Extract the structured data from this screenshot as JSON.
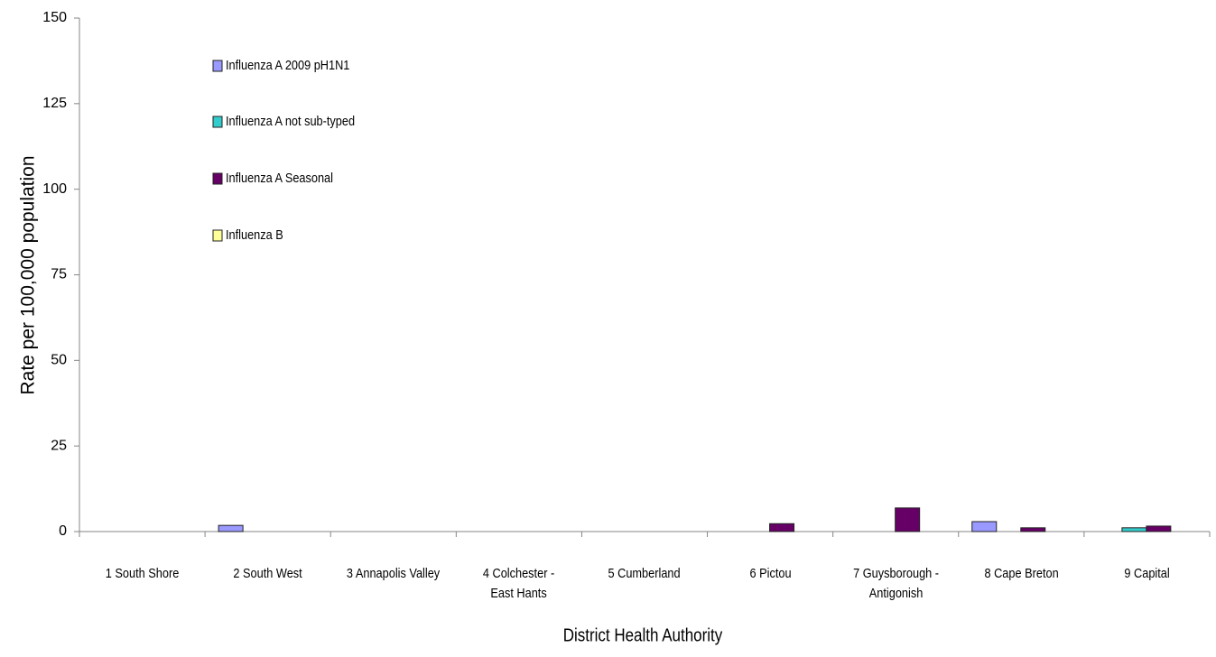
{
  "chart_data": {
    "type": "bar",
    "x_label": "District Health Authority",
    "y_label": "Rate per 100,000 population",
    "categories": [
      "1 South Shore",
      "2 South West",
      "3 Annapolis Valley",
      "4 Colchester - East Hants",
      "5 Cumberland",
      "6 Pictou",
      "7 Guysborough - Antigonish",
      "8 Cape Breton",
      "9 Capital"
    ],
    "series": [
      {
        "name": "Influenza A 2009 pH1N1",
        "color": "#9999ff",
        "values": [
          0,
          1.8,
          0,
          0,
          0,
          0,
          0,
          2.9,
          0
        ]
      },
      {
        "name": "Influenza A not sub-typed",
        "color": "#33cccc",
        "values": [
          0,
          0,
          0,
          0,
          0,
          0,
          0,
          0,
          1.1
        ]
      },
      {
        "name": "Influenza A Seasonal",
        "color": "#660066",
        "values": [
          0,
          0,
          0,
          0,
          0,
          2.3,
          6.9,
          1.1,
          1.6
        ]
      },
      {
        "name": "Influenza B",
        "color": "#ffff99",
        "values": [
          0,
          0,
          0,
          0,
          0,
          0,
          0,
          0,
          0
        ]
      }
    ],
    "ylim": [
      0,
      150
    ],
    "yticks": [
      0,
      25,
      50,
      75,
      100,
      125,
      150
    ],
    "grid": false
  }
}
